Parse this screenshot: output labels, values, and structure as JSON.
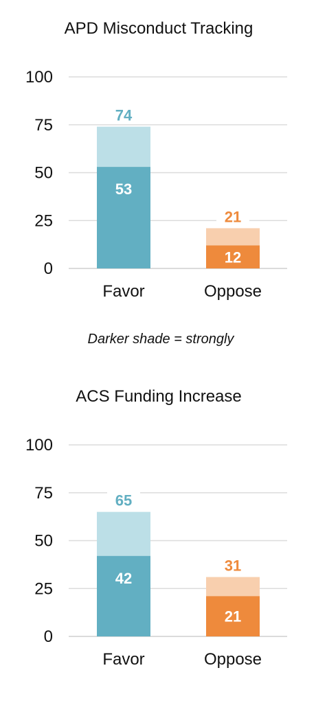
{
  "note": "Darker shade = strongly",
  "chart_data": [
    {
      "type": "bar",
      "title": "APD Misconduct Tracking",
      "categories": [
        "Favor",
        "Oppose"
      ],
      "series": [
        {
          "values": [
            53,
            12
          ]
        },
        {
          "values": [
            74,
            21
          ]
        }
      ],
      "ylim": [
        0,
        100
      ],
      "yticks": [
        0,
        25,
        50,
        75,
        100
      ],
      "grid": true,
      "colors": {
        "Favor": {
          "strong": "#62AFC2",
          "total": "#BCDFE7",
          "label": "#62AFC2"
        },
        "Oppose": {
          "strong": "#EE8A3C",
          "total": "#F8CFAE",
          "label": "#EE8A3C"
        }
      }
    },
    {
      "type": "bar",
      "title": "ACS Funding Increase",
      "categories": [
        "Favor",
        "Oppose"
      ],
      "series": [
        {
          "values": [
            42,
            21
          ]
        },
        {
          "values": [
            65,
            31
          ]
        }
      ],
      "ylim": [
        0,
        100
      ],
      "yticks": [
        0,
        25,
        50,
        75,
        100
      ],
      "grid": true,
      "colors": {
        "Favor": {
          "strong": "#62AFC2",
          "total": "#BCDFE7",
          "label": "#62AFC2"
        },
        "Oppose": {
          "strong": "#EE8A3C",
          "total": "#F8CFAE",
          "label": "#EE8A3C"
        }
      }
    }
  ]
}
